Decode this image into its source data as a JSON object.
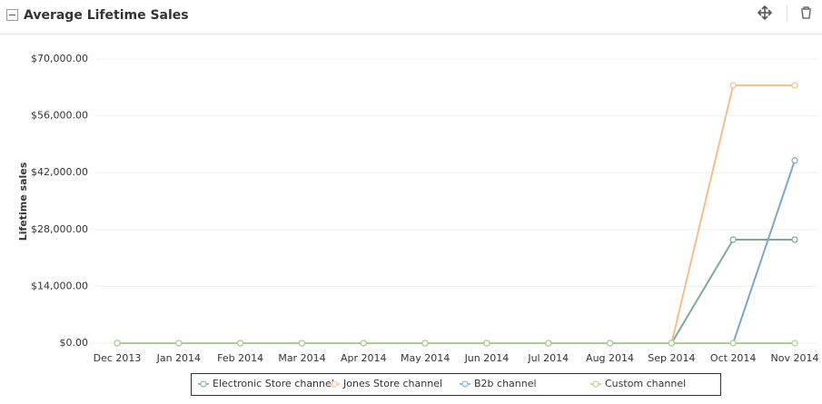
{
  "chart_data": {
    "type": "line",
    "title": "Average Lifetime Sales",
    "y_label": "Lifetime sales",
    "categories": [
      "Dec 2013",
      "Jan 2014",
      "Feb 2014",
      "Mar 2014",
      "Apr 2014",
      "May 2014",
      "Jun 2014",
      "Jul 2014",
      "Aug 2014",
      "Sep 2014",
      "Oct 2014",
      "Nov 2014"
    ],
    "series": [
      {
        "name": "Electronic Store channel",
        "color": "#7ea99a",
        "values": [
          0,
          0,
          0,
          0,
          0,
          0,
          0,
          0,
          0,
          0,
          25500,
          25500
        ]
      },
      {
        "name": "Jones Store channel",
        "color": "#f3bf8b",
        "values": [
          0,
          0,
          0,
          0,
          0,
          0,
          0,
          0,
          0,
          0,
          63500,
          63500
        ]
      },
      {
        "name": "B2b channel",
        "color": "#7aa7cd",
        "values": [
          0,
          0,
          0,
          0,
          0,
          0,
          0,
          0,
          0,
          0,
          0,
          45000
        ]
      },
      {
        "name": "Custom channel",
        "color": "#a9d08f",
        "values": [
          0,
          0,
          0,
          0,
          0,
          0,
          0,
          0,
          0,
          0,
          0,
          0
        ]
      }
    ],
    "ylim": [
      0,
      70000
    ],
    "yticks": [
      {
        "value": 0,
        "label": "$0.00"
      },
      {
        "value": 14000,
        "label": "$14,000.00"
      },
      {
        "value": 28000,
        "label": "$28,000.00"
      },
      {
        "value": 42000,
        "label": "$42,000.00"
      },
      {
        "value": 56000,
        "label": "$56,000.00"
      },
      {
        "value": 70000,
        "label": "$70,000.00"
      }
    ],
    "grid": true
  }
}
